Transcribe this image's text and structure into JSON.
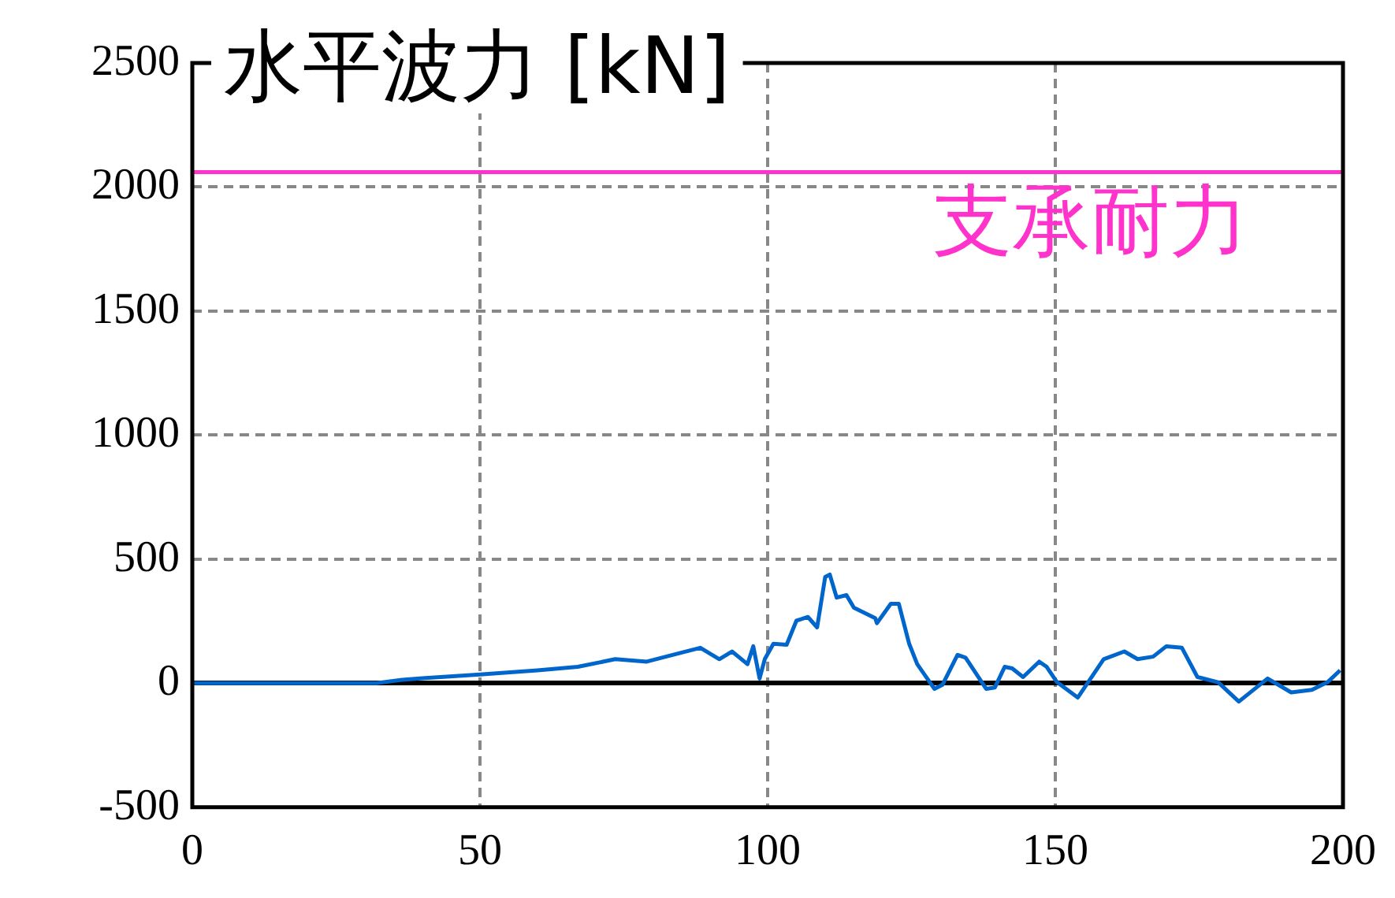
{
  "chart_data": {
    "type": "line",
    "title": "水平波力 [kN]",
    "x": [
      0,
      32,
      36.5,
      40,
      50,
      60,
      67,
      73.5,
      79,
      83.5,
      88.3,
      91.6,
      93.8,
      96.5,
      97.5,
      98.6,
      99.5,
      101,
      103.3,
      105,
      107,
      108.6,
      110,
      110.8,
      112,
      113.7,
      115,
      118.7,
      119,
      121.4,
      122.8,
      124.6,
      126,
      129,
      130.4,
      133,
      134.4,
      138,
      139.5,
      141.2,
      142.5,
      144.4,
      147.2,
      148.5,
      150.3,
      153.9,
      158.4,
      162,
      164.3,
      167,
      169.3,
      172,
      174.7,
      178.3,
      181.9,
      186.9,
      191,
      194.6,
      197.3,
      199.5
    ],
    "series": [
      {
        "color": "#0066cc",
        "values": [
          0,
          0,
          14,
          20,
          35,
          52,
          66,
          97,
          87,
          114,
          143,
          97,
          128,
          77,
          149,
          19,
          97,
          159,
          155,
          252,
          267,
          225,
          428,
          438,
          345,
          355,
          304,
          262,
          242,
          320,
          320,
          159,
          77,
          -23,
          -6,
          114,
          103,
          -23,
          -17,
          66,
          60,
          25,
          87,
          66,
          4,
          -58,
          97,
          128,
          97,
          107,
          149,
          143,
          25,
          4,
          -74,
          19,
          -37,
          -27,
          4,
          52
        ]
      }
    ],
    "xlim": [
      0,
      200
    ],
    "xticks": [
      0,
      50,
      100,
      150,
      200
    ],
    "ylim": [
      -500,
      2500
    ],
    "yticks": [
      -500,
      0,
      500,
      1000,
      1500,
      2000,
      2500
    ],
    "ref_lines": [
      {
        "axis": "y",
        "value": 2060,
        "label": "支承耐力",
        "color": "#ff33cc"
      }
    ],
    "grid": true,
    "legend": false,
    "marker": "none",
    "line_style": "solid"
  }
}
